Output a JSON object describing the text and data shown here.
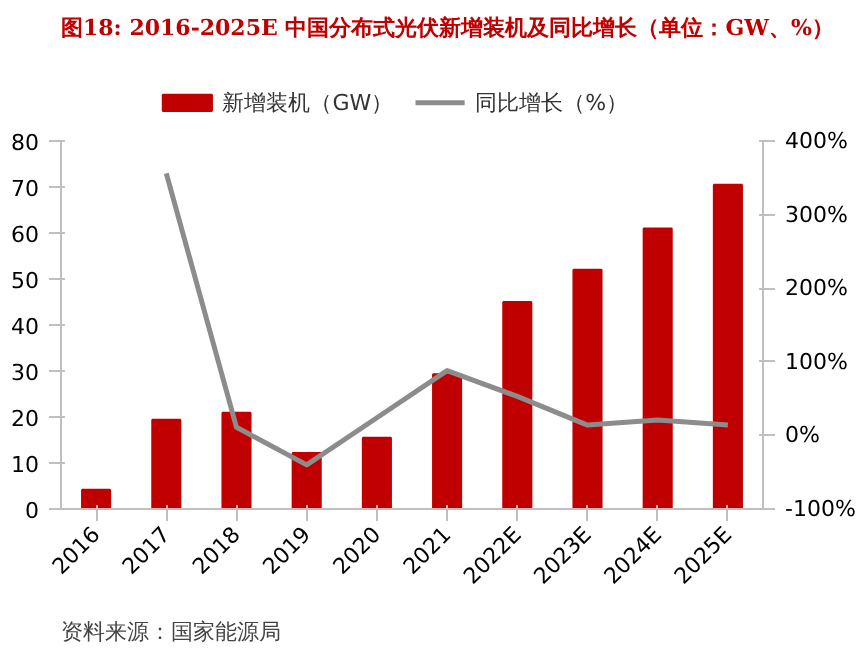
{
  "chart_data": {
    "type": "bar",
    "title": "图18:   2016-2025E 中国分布式光伏新增装机及同比增长（单位：GW、%）",
    "annotations": [
      "资料来源：国家能源局"
    ],
    "categories": [
      "2016",
      "2017",
      "2018",
      "2019",
      "2020",
      "2021",
      "2022E",
      "2023E",
      "2024E",
      "2025E"
    ],
    "series": [
      {
        "name": "新增装机（GW）",
        "color": "#c00000",
        "values": [
          4.2,
          19.4,
          20.9,
          12.2,
          15.5,
          29.3,
          45,
          52,
          61,
          70.5
        ]
      },
      {
        "name": "同比增长（%）",
        "type": "line",
        "axis": "y2",
        "color": "#8c8c8c",
        "values": [
          null,
          356,
          11,
          -40,
          24,
          88,
          53,
          14,
          21,
          14
        ]
      }
    ],
    "ylim": [
      0,
      80
    ],
    "yticks": [
      0,
      10,
      20,
      30,
      40,
      50,
      60,
      70,
      80
    ],
    "y2lim": [
      -100,
      400
    ],
    "y2ticks": [
      {
        "value": -100,
        "label": "-100%"
      },
      {
        "value": 0,
        "label": "0%"
      },
      {
        "value": 100,
        "label": "100%"
      },
      {
        "value": 200,
        "label": "200%"
      },
      {
        "value": 300,
        "label": "300%"
      },
      {
        "value": 400,
        "label": "400%"
      }
    ],
    "grid": false,
    "legend": "top"
  }
}
